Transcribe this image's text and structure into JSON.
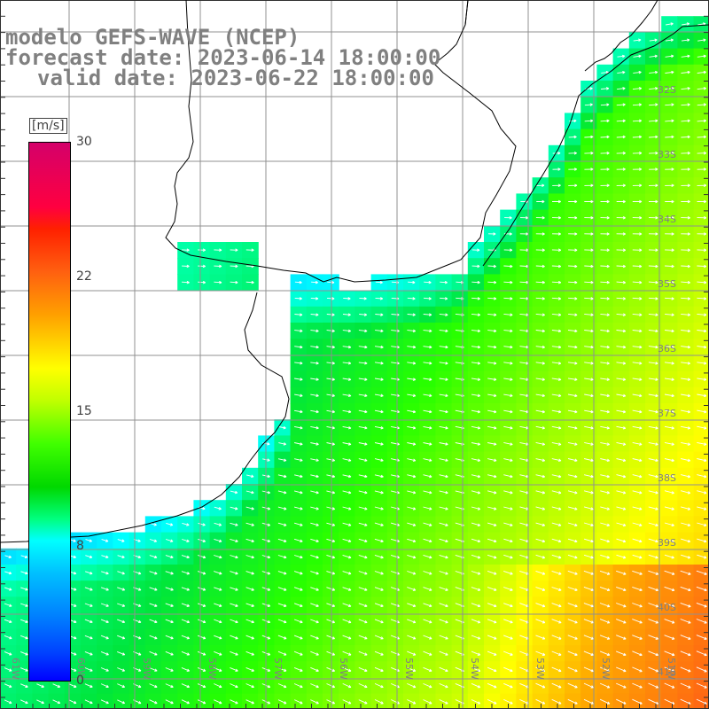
{
  "title": {
    "line1": "modelo GEFS-WAVE (NCEP)",
    "line2": "forecast date: 2023-06-14 18:00:00",
    "line3": "valid date: 2023-06-22 18:00:00"
  },
  "colorbar": {
    "unit": "[m/s]",
    "ticks": [
      "30",
      "22",
      "15",
      "8",
      "0"
    ],
    "min": 0,
    "max": 30
  },
  "lat_labels": [
    "32S",
    "33S",
    "34S",
    "35S",
    "36S",
    "37S",
    "38S",
    "39S",
    "40S",
    "41S"
  ],
  "lon_labels": [
    "61W",
    "60W",
    "59W",
    "58W",
    "57W",
    "56W",
    "55W",
    "54W",
    "53W",
    "52W",
    "51W"
  ],
  "colors": {
    "land": "#ffffff",
    "grid": "#909090",
    "coast": "#000000",
    "arrow": "#ffffff",
    "label_gray": "#808080"
  }
}
